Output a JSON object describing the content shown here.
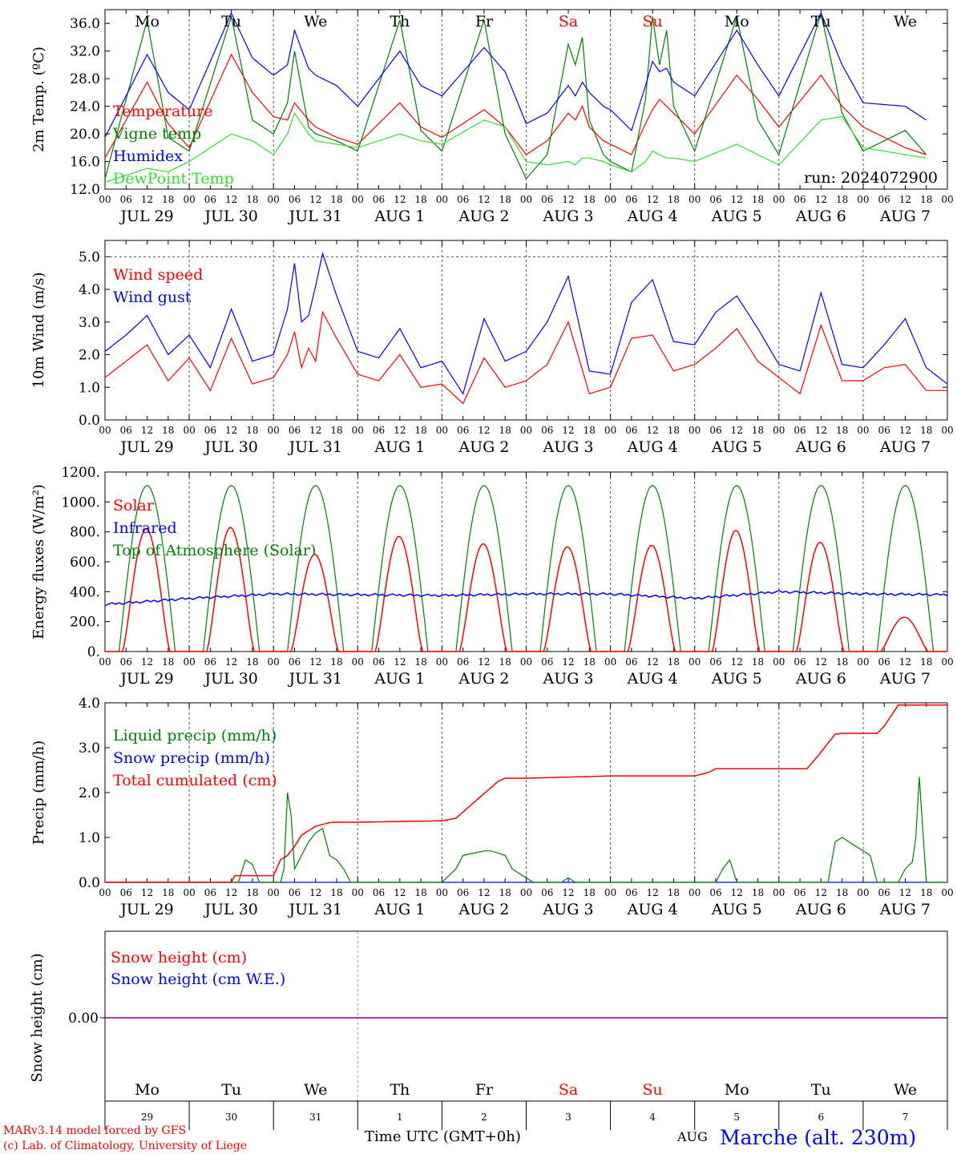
{
  "colors": {
    "red": "#ff0000",
    "blue": "#0000ff",
    "green": "#008000",
    "lightgreen": "#33dd33",
    "purple": "#800080",
    "grid": "#555555"
  },
  "days": {
    "weekday_labels": [
      "Mo",
      "Tu",
      "We",
      "Th",
      "Fr",
      "Sa",
      "Su",
      "Mo",
      "Tu",
      "We"
    ],
    "weekend_indices": [
      5,
      6
    ],
    "date_labels": [
      "JUL 29",
      "JUL 30",
      "JUL 31",
      "AUG  1",
      "AUG  2",
      "AUG  3",
      "AUG  4",
      "AUG  5",
      "AUG  6",
      "AUG  7"
    ],
    "hour_ticks": [
      "00",
      "06",
      "12",
      "18"
    ],
    "hour_end": "00",
    "day_numbers": [
      "29",
      "30",
      "31",
      "1",
      "2",
      "3",
      "4",
      "5",
      "6",
      "7"
    ]
  },
  "footer": {
    "model_line": "MARv3.14 model forced by GFS",
    "credit_line": "(c) Lab. of Climatology, University of Liege",
    "xlabel": "Time UTC (GMT+0h)",
    "month": "AUG",
    "station": "Marche (alt. 230m)"
  },
  "chart_data": [
    {
      "id": "temperature",
      "type": "line",
      "ylabel": "2m Temp. (ºC)",
      "ylim": [
        12,
        38
      ],
      "yticks": [
        "12.0",
        "16.0",
        "20.0",
        "24.0",
        "28.0",
        "32.0",
        "36.0"
      ],
      "annotation": "run: 2024072900",
      "x_hours": [
        0,
        12,
        18,
        24,
        36,
        42,
        48,
        52,
        54,
        58,
        60,
        66,
        72,
        84,
        90,
        96,
        108,
        114,
        120,
        126,
        132,
        134,
        136,
        138,
        142,
        144,
        150,
        154,
        156,
        158,
        160,
        162,
        168,
        180,
        186,
        192,
        204,
        210,
        216,
        228,
        234,
        240
      ],
      "series": [
        {
          "name": "Temperature",
          "color": "red",
          "values": [
            16.5,
            27.5,
            21.5,
            18.0,
            31.5,
            26.0,
            22.5,
            22.0,
            24.5,
            22.0,
            21.0,
            19.5,
            18.5,
            24.5,
            21.0,
            19.5,
            23.5,
            21.0,
            17.0,
            19.0,
            23.0,
            22.0,
            24.0,
            21.0,
            19.0,
            18.5,
            17.0,
            21.5,
            23.5,
            25.0,
            24.0,
            23.0,
            20.0,
            28.5,
            25.0,
            21.0,
            28.5,
            24.0,
            21.0,
            18.0,
            17.0,
            16.5
          ]
        },
        {
          "name": "Vigne temp",
          "color": "green",
          "values": [
            13.5,
            36.5,
            19.5,
            17.5,
            37.0,
            22.0,
            20.0,
            24.5,
            32.0,
            21.0,
            20.0,
            19.0,
            17.5,
            36.5,
            20.5,
            17.5,
            36.5,
            20.0,
            13.5,
            17.0,
            33.0,
            30.0,
            34.0,
            22.0,
            17.0,
            16.0,
            14.5,
            25.0,
            37.0,
            30.0,
            35.0,
            24.0,
            17.5,
            37.0,
            22.0,
            17.0,
            37.5,
            23.0,
            17.5,
            20.5,
            17.0,
            16.0
          ]
        },
        {
          "name": "Humidex",
          "color": "blue",
          "values": [
            19.5,
            31.5,
            26.0,
            23.5,
            37.5,
            31.0,
            28.5,
            30.0,
            35.0,
            29.5,
            28.5,
            27.0,
            24.0,
            32.0,
            27.0,
            25.5,
            32.5,
            29.0,
            21.5,
            23.0,
            27.0,
            25.5,
            27.5,
            26.0,
            24.0,
            23.5,
            20.5,
            27.0,
            30.5,
            29.0,
            29.5,
            27.5,
            25.5,
            35.0,
            30.0,
            25.5,
            37.5,
            30.0,
            24.5,
            24.0,
            22.0,
            21.0
          ]
        },
        {
          "name": "DewPoint Temp",
          "color": "lightgreen",
          "values": [
            13.0,
            15.0,
            14.5,
            16.0,
            20.0,
            19.0,
            17.0,
            20.0,
            23.0,
            20.0,
            19.0,
            18.5,
            18.0,
            20.0,
            19.0,
            18.5,
            22.0,
            21.0,
            16.0,
            15.5,
            16.0,
            15.5,
            16.5,
            16.5,
            16.0,
            15.5,
            14.5,
            16.0,
            17.5,
            17.0,
            16.5,
            16.5,
            16.0,
            18.5,
            17.0,
            15.5,
            22.0,
            22.5,
            18.0,
            17.0,
            16.5,
            16.0
          ]
        }
      ]
    },
    {
      "id": "wind",
      "type": "line",
      "ylabel": "10m Wind (m/s)",
      "ylim": [
        0,
        5.5
      ],
      "yticks": [
        "0.0",
        "1.0",
        "2.0",
        "3.0",
        "4.0",
        "5.0"
      ],
      "x_hours": [
        0,
        6,
        12,
        18,
        24,
        30,
        36,
        42,
        48,
        52,
        54,
        56,
        58,
        60,
        62,
        66,
        72,
        78,
        84,
        90,
        96,
        102,
        108,
        114,
        120,
        126,
        132,
        138,
        144,
        150,
        156,
        162,
        168,
        174,
        180,
        186,
        192,
        198,
        204,
        210,
        216,
        222,
        228,
        234,
        240
      ],
      "series": [
        {
          "name": "Wind speed",
          "color": "red",
          "values": [
            1.3,
            1.8,
            2.3,
            1.2,
            1.9,
            0.9,
            2.5,
            1.1,
            1.3,
            2.0,
            2.7,
            1.6,
            2.2,
            1.8,
            3.3,
            2.5,
            1.4,
            1.2,
            2.0,
            1.0,
            1.1,
            0.5,
            1.9,
            1.0,
            1.2,
            1.7,
            3.0,
            0.8,
            1.0,
            2.5,
            2.6,
            1.5,
            1.7,
            2.2,
            2.8,
            1.8,
            1.3,
            0.8,
            2.9,
            1.2,
            1.2,
            1.6,
            1.7,
            0.9,
            0.9
          ]
        },
        {
          "name": "Wind gust",
          "color": "blue",
          "values": [
            2.1,
            2.6,
            3.2,
            2.0,
            2.6,
            1.6,
            3.4,
            1.8,
            2.0,
            3.4,
            4.8,
            3.0,
            3.2,
            4.1,
            5.1,
            3.8,
            2.1,
            1.9,
            2.8,
            1.6,
            1.8,
            0.8,
            3.1,
            1.8,
            2.1,
            3.0,
            4.4,
            1.5,
            1.4,
            3.6,
            4.3,
            2.4,
            2.3,
            3.3,
            3.8,
            2.8,
            1.7,
            1.5,
            3.9,
            1.7,
            1.6,
            2.3,
            3.1,
            1.6,
            1.1
          ]
        }
      ]
    },
    {
      "id": "energy",
      "type": "line",
      "ylabel": "Energy fluxes (W/m²)",
      "ylim": [
        0,
        1200
      ],
      "yticks": [
        "0.",
        "200.",
        "400.",
        "600.",
        "800.",
        "1000.",
        "1200."
      ],
      "toa": {
        "peak": 1110,
        "rise_hour": 4,
        "set_hour": 20
      },
      "solar_peaks": [
        820,
        830,
        650,
        770,
        720,
        700,
        710,
        810,
        730,
        230
      ],
      "infrared": {
        "x_hours": [
          0,
          24,
          48,
          72,
          96,
          120,
          144,
          168,
          192,
          216,
          240
        ],
        "values": [
          315,
          355,
          385,
          380,
          375,
          385,
          385,
          355,
          400,
          385,
          380
        ]
      },
      "series": [
        {
          "name": "Solar",
          "color": "red"
        },
        {
          "name": "Infrared",
          "color": "blue"
        },
        {
          "name": "Top of Atmosphere (Solar)",
          "color": "green"
        }
      ]
    },
    {
      "id": "precip",
      "type": "line",
      "ylabel": "Precip (mm/h)",
      "ylim": [
        0,
        4
      ],
      "yticks": [
        "0.0",
        "1.0",
        "2.0",
        "3.0",
        "4.0"
      ],
      "liquid": {
        "x_hours": [
          0,
          38,
          40,
          42,
          44,
          48,
          50,
          51,
          52,
          53,
          54,
          56,
          58,
          60,
          62,
          64,
          66,
          68,
          70,
          72,
          96,
          100,
          102,
          108,
          110,
          114,
          116,
          122,
          130,
          132,
          134,
          140,
          162,
          174,
          176,
          178,
          180,
          206,
          208,
          210,
          212,
          214,
          218,
          220,
          226,
          228,
          230,
          231,
          232,
          234,
          240
        ],
        "values": [
          0,
          0,
          0.5,
          0.4,
          0,
          0,
          0,
          0.3,
          2.0,
          1.5,
          0.3,
          0.6,
          0.9,
          1.1,
          1.2,
          0.6,
          0.5,
          0.3,
          0,
          0,
          0,
          0.3,
          0.6,
          0.7,
          0.7,
          0.6,
          0.3,
          0,
          0,
          0.1,
          0,
          0,
          0,
          0,
          0.3,
          0.5,
          0,
          0,
          0.9,
          1.0,
          0.9,
          0.8,
          0.6,
          0,
          0,
          0.3,
          0.45,
          1.0,
          2.35,
          0,
          0
        ]
      },
      "cumulative": {
        "x_hours": [
          0,
          36,
          37,
          48,
          50,
          52,
          54,
          56,
          60,
          64,
          66,
          68,
          70,
          72,
          96,
          100,
          112,
          114,
          120,
          144,
          168,
          172,
          174,
          200,
          204,
          208,
          210,
          220,
          222,
          226,
          230,
          231,
          240
        ],
        "values": [
          0,
          0,
          0.15,
          0.15,
          0.5,
          0.6,
          0.8,
          1.05,
          1.25,
          1.33,
          1.34,
          1.34,
          1.34,
          1.34,
          1.37,
          1.43,
          2.25,
          2.32,
          2.32,
          2.37,
          2.37,
          2.45,
          2.53,
          2.53,
          2.9,
          3.3,
          3.32,
          3.32,
          3.48,
          3.95,
          3.95,
          3.95,
          3.95
        ]
      },
      "series": [
        {
          "name": "Liquid precip (mm/h)",
          "color": "green"
        },
        {
          "name": "Snow precip (mm/h)",
          "color": "blue"
        },
        {
          "name": "Total cumulated (cm)",
          "color": "red"
        }
      ]
    },
    {
      "id": "snow",
      "type": "line",
      "ylabel": "Snow height (cm)",
      "yticks": [
        "0.00"
      ],
      "value": 0,
      "series": [
        {
          "name": "Snow height (cm)",
          "color": "red"
        },
        {
          "name": "Snow height (cm W.E.)",
          "color": "blue"
        }
      ]
    }
  ]
}
